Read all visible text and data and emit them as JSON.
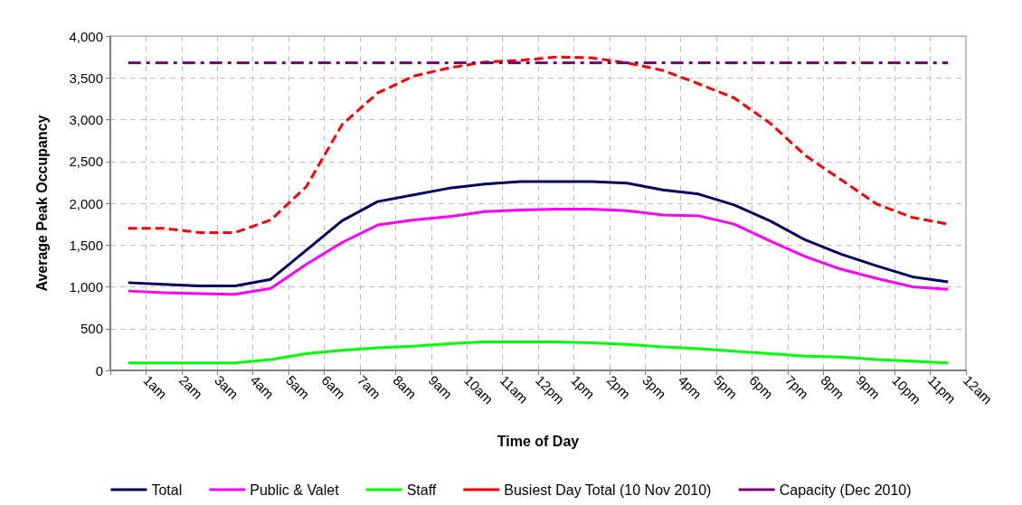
{
  "chart_data": {
    "type": "line",
    "xlabel": "Time of Day",
    "ylabel": "Average Peak Occupancy",
    "categories": [
      null,
      null,
      "1am",
      null,
      "2am",
      null,
      "3am",
      null,
      "4am",
      null,
      "5am",
      null,
      "6am",
      null,
      "7am",
      null,
      "8am",
      null,
      "9am",
      null,
      "10am",
      null,
      "11am",
      null,
      "12pm",
      null,
      "1pm",
      null,
      "2pm",
      null,
      "3pm",
      null,
      "4pm",
      null,
      "5pm",
      null,
      "6pm",
      null,
      "7pm",
      null,
      "8pm",
      null,
      "9pm",
      null,
      "10pm",
      null,
      "11pm",
      null,
      "12am"
    ],
    "series": [
      {
        "name": "Total",
        "color": "#000066",
        "line_style": "solid",
        "values": [
          null,
          1050,
          null,
          1030,
          null,
          1010,
          null,
          1010,
          null,
          1090,
          null,
          1440,
          null,
          1790,
          null,
          2020,
          null,
          2100,
          null,
          2180,
          null,
          2230,
          null,
          2260,
          null,
          2260,
          null,
          2260,
          null,
          2240,
          null,
          2160,
          null,
          2110,
          null,
          1980,
          null,
          1790,
          null,
          1560,
          null,
          1390,
          null,
          1250,
          null,
          1120,
          null,
          1060,
          null
        ]
      },
      {
        "name": "Public & Valet",
        "color": "#ff00ff",
        "line_style": "solid",
        "values": [
          null,
          950,
          null,
          930,
          null,
          920,
          null,
          910,
          null,
          980,
          null,
          1270,
          null,
          1530,
          null,
          1740,
          null,
          1800,
          null,
          1840,
          null,
          1900,
          null,
          1920,
          null,
          1930,
          null,
          1930,
          null,
          1910,
          null,
          1860,
          null,
          1850,
          null,
          1750,
          null,
          1550,
          null,
          1360,
          null,
          1210,
          null,
          1100,
          null,
          1000,
          null,
          970,
          null
        ]
      },
      {
        "name": "Staff",
        "color": "#00ff00",
        "line_style": "solid",
        "values": [
          null,
          90,
          null,
          90,
          null,
          90,
          null,
          90,
          null,
          130,
          null,
          200,
          null,
          240,
          null,
          270,
          null,
          290,
          null,
          320,
          null,
          340,
          null,
          340,
          null,
          340,
          null,
          330,
          null,
          310,
          null,
          280,
          null,
          260,
          null,
          230,
          null,
          200,
          null,
          170,
          null,
          160,
          null,
          130,
          null,
          110,
          null,
          90,
          null
        ]
      },
      {
        "name": "Busiest Day Total (10 Nov 2010)",
        "color": "#ff0000",
        "line_style": "dashed",
        "values": [
          null,
          1700,
          null,
          1700,
          null,
          1650,
          null,
          1650,
          null,
          1800,
          null,
          2200,
          null,
          2940,
          null,
          3320,
          null,
          3520,
          null,
          3620,
          null,
          3690,
          null,
          3710,
          null,
          3750,
          null,
          3740,
          null,
          3680,
          null,
          3590,
          null,
          3430,
          null,
          3260,
          null,
          2960,
          null,
          2570,
          null,
          2280,
          null,
          1990,
          null,
          1830,
          null,
          1750,
          null
        ]
      },
      {
        "name": "Capacity (Dec 2010)",
        "color": "#800080",
        "line_style": "dashdot",
        "values": [
          null,
          3680,
          null,
          3680,
          null,
          3680,
          null,
          3680,
          null,
          3680,
          null,
          3680,
          null,
          3680,
          null,
          3680,
          null,
          3680,
          null,
          3680,
          null,
          3680,
          null,
          3680,
          null,
          3680,
          null,
          3680,
          null,
          3680,
          null,
          3680,
          null,
          3680,
          null,
          3680,
          null,
          3680,
          null,
          3680,
          null,
          3680,
          null,
          3680,
          null,
          3680,
          null,
          3680,
          null
        ]
      }
    ],
    "ylim": [
      0,
      4000
    ],
    "yticks": [
      0,
      500,
      {
        "value": 1000,
        "label": "1,000"
      },
      {
        "value": 1500,
        "label": "1,500"
      },
      {
        "value": 2000,
        "label": "2,000"
      },
      {
        "value": 2500,
        "label": "2,500"
      },
      {
        "value": 3000,
        "label": "3,000"
      },
      {
        "value": 3500,
        "label": "3,500"
      },
      {
        "value": 4000,
        "label": "4,000"
      }
    ],
    "grid": true,
    "legend": "bottom",
    "marker": "none"
  }
}
